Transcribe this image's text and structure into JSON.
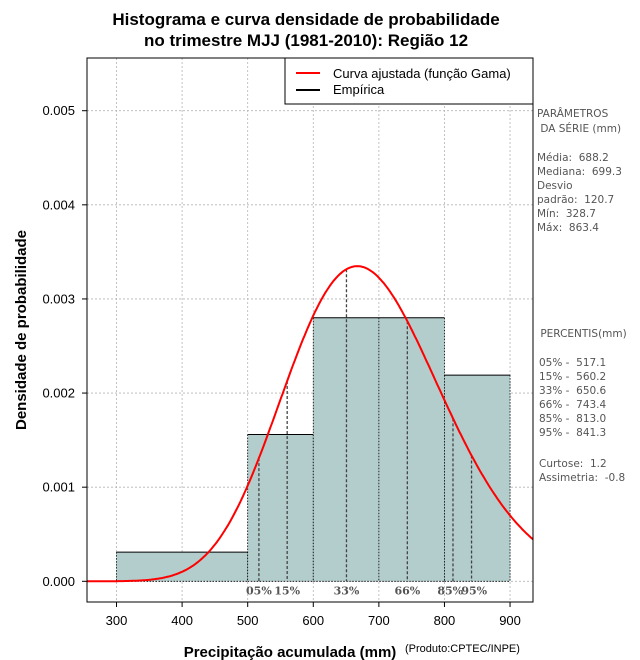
{
  "chart_data": {
    "type": "histogram",
    "title_lines": [
      "Histograma e curva densidade de probabilidade",
      "no trimestre MJJ (1981-2010): Região 12"
    ],
    "xlabel": "Precipitação acumulada (mm)",
    "ylabel": "Densidade de probabilidade",
    "credit": "(Produto:CPTEC/INPE)",
    "xlim": [
      255,
      935
    ],
    "ylim": [
      -0.00022,
      0.00556
    ],
    "x_ticks": [
      300,
      400,
      500,
      600,
      700,
      800,
      900
    ],
    "x_tick_labels": [
      "300",
      "400",
      "500",
      "600",
      "700",
      "800",
      "900"
    ],
    "y_ticks": [
      0,
      0.001,
      0.002,
      0.003,
      0.004,
      0.005
    ],
    "y_tick_labels": [
      "0.000",
      "0.001",
      "0.002",
      "0.003",
      "0.004",
      "0.005"
    ],
    "grid": true,
    "bins": [
      {
        "start": 300,
        "end": 500,
        "density": 0.00031
      },
      {
        "start": 500,
        "end": 600,
        "density": 0.00156
      },
      {
        "start": 600,
        "end": 800,
        "density": 0.0028
      },
      {
        "start": 800,
        "end": 900,
        "density": 0.00219
      }
    ],
    "bin_subdivisions": [
      700
    ],
    "bar_color": "#b3cccc",
    "curve": {
      "name": "Curva ajustada (função Gama)",
      "color": "#ff0000",
      "dist": "gamma",
      "mean": 688.2,
      "sd": 120.7
    },
    "empirical_name": "Empírica",
    "legend": [
      {
        "label": "Curva ajustada (função Gama)",
        "color": "#ff0000"
      },
      {
        "label": "Empírica",
        "color": "#000000"
      }
    ],
    "legend_position": "top-right",
    "percentiles": [
      {
        "label": "05%",
        "value": 517.1
      },
      {
        "label": "15%",
        "value": 560.2
      },
      {
        "label": "33%",
        "value": 650.6
      },
      {
        "label": "66%",
        "value": 743.4
      },
      {
        "label": "85%",
        "value": 813.0
      },
      {
        "label": "95%",
        "value": 841.3
      }
    ]
  },
  "side_panel": {
    "params_title": [
      "PARÂMETROS",
      " DA SÉRIE (mm)"
    ],
    "params": [
      "Média:  688.2",
      "Mediana:  699.3",
      "Desvio",
      "padrão:  120.7",
      "Mín:  328.7",
      "Máx:  863.4"
    ],
    "percentis_title": " PERCENTIS(mm)",
    "percentis": [
      "05% -  517.1",
      "15% -  560.2",
      "33% -  650.6",
      "66% -  743.4",
      "85% -  813.0",
      "95% -  841.3"
    ],
    "stats": [
      "Curtose:  1.2",
      "Assimetria:  -0.8"
    ]
  }
}
